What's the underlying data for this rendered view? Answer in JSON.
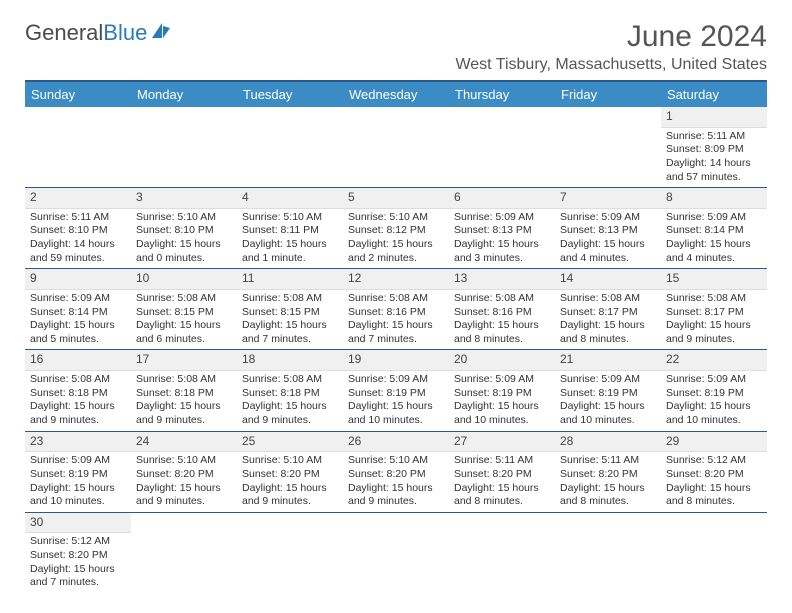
{
  "brand": {
    "text1": "General",
    "text2": "Blue"
  },
  "header": {
    "month_title": "June 2024",
    "location": "West Tisbury, Massachusetts, United States"
  },
  "weekdays": [
    "Sunday",
    "Monday",
    "Tuesday",
    "Wednesday",
    "Thursday",
    "Friday",
    "Saturday"
  ],
  "colors": {
    "header_bg": "#3b8bc4",
    "header_border": "#2a5a8a",
    "daynum_bg": "#f0f0f0",
    "text": "#333333"
  },
  "weeks": [
    [
      null,
      null,
      null,
      null,
      null,
      null,
      {
        "n": "1",
        "sr": "5:11 AM",
        "ss": "8:09 PM",
        "dl": "14 hours and 57 minutes."
      }
    ],
    [
      {
        "n": "2",
        "sr": "5:11 AM",
        "ss": "8:10 PM",
        "dl": "14 hours and 59 minutes."
      },
      {
        "n": "3",
        "sr": "5:10 AM",
        "ss": "8:10 PM",
        "dl": "15 hours and 0 minutes."
      },
      {
        "n": "4",
        "sr": "5:10 AM",
        "ss": "8:11 PM",
        "dl": "15 hours and 1 minute."
      },
      {
        "n": "5",
        "sr": "5:10 AM",
        "ss": "8:12 PM",
        "dl": "15 hours and 2 minutes."
      },
      {
        "n": "6",
        "sr": "5:09 AM",
        "ss": "8:13 PM",
        "dl": "15 hours and 3 minutes."
      },
      {
        "n": "7",
        "sr": "5:09 AM",
        "ss": "8:13 PM",
        "dl": "15 hours and 4 minutes."
      },
      {
        "n": "8",
        "sr": "5:09 AM",
        "ss": "8:14 PM",
        "dl": "15 hours and 4 minutes."
      }
    ],
    [
      {
        "n": "9",
        "sr": "5:09 AM",
        "ss": "8:14 PM",
        "dl": "15 hours and 5 minutes."
      },
      {
        "n": "10",
        "sr": "5:08 AM",
        "ss": "8:15 PM",
        "dl": "15 hours and 6 minutes."
      },
      {
        "n": "11",
        "sr": "5:08 AM",
        "ss": "8:15 PM",
        "dl": "15 hours and 7 minutes."
      },
      {
        "n": "12",
        "sr": "5:08 AM",
        "ss": "8:16 PM",
        "dl": "15 hours and 7 minutes."
      },
      {
        "n": "13",
        "sr": "5:08 AM",
        "ss": "8:16 PM",
        "dl": "15 hours and 8 minutes."
      },
      {
        "n": "14",
        "sr": "5:08 AM",
        "ss": "8:17 PM",
        "dl": "15 hours and 8 minutes."
      },
      {
        "n": "15",
        "sr": "5:08 AM",
        "ss": "8:17 PM",
        "dl": "15 hours and 9 minutes."
      }
    ],
    [
      {
        "n": "16",
        "sr": "5:08 AM",
        "ss": "8:18 PM",
        "dl": "15 hours and 9 minutes."
      },
      {
        "n": "17",
        "sr": "5:08 AM",
        "ss": "8:18 PM",
        "dl": "15 hours and 9 minutes."
      },
      {
        "n": "18",
        "sr": "5:08 AM",
        "ss": "8:18 PM",
        "dl": "15 hours and 9 minutes."
      },
      {
        "n": "19",
        "sr": "5:09 AM",
        "ss": "8:19 PM",
        "dl": "15 hours and 10 minutes."
      },
      {
        "n": "20",
        "sr": "5:09 AM",
        "ss": "8:19 PM",
        "dl": "15 hours and 10 minutes."
      },
      {
        "n": "21",
        "sr": "5:09 AM",
        "ss": "8:19 PM",
        "dl": "15 hours and 10 minutes."
      },
      {
        "n": "22",
        "sr": "5:09 AM",
        "ss": "8:19 PM",
        "dl": "15 hours and 10 minutes."
      }
    ],
    [
      {
        "n": "23",
        "sr": "5:09 AM",
        "ss": "8:19 PM",
        "dl": "15 hours and 10 minutes."
      },
      {
        "n": "24",
        "sr": "5:10 AM",
        "ss": "8:20 PM",
        "dl": "15 hours and 9 minutes."
      },
      {
        "n": "25",
        "sr": "5:10 AM",
        "ss": "8:20 PM",
        "dl": "15 hours and 9 minutes."
      },
      {
        "n": "26",
        "sr": "5:10 AM",
        "ss": "8:20 PM",
        "dl": "15 hours and 9 minutes."
      },
      {
        "n": "27",
        "sr": "5:11 AM",
        "ss": "8:20 PM",
        "dl": "15 hours and 8 minutes."
      },
      {
        "n": "28",
        "sr": "5:11 AM",
        "ss": "8:20 PM",
        "dl": "15 hours and 8 minutes."
      },
      {
        "n": "29",
        "sr": "5:12 AM",
        "ss": "8:20 PM",
        "dl": "15 hours and 8 minutes."
      }
    ],
    [
      {
        "n": "30",
        "sr": "5:12 AM",
        "ss": "8:20 PM",
        "dl": "15 hours and 7 minutes."
      },
      null,
      null,
      null,
      null,
      null,
      null
    ]
  ],
  "labels": {
    "sunrise": "Sunrise: ",
    "sunset": "Sunset: ",
    "daylight": "Daylight: "
  }
}
